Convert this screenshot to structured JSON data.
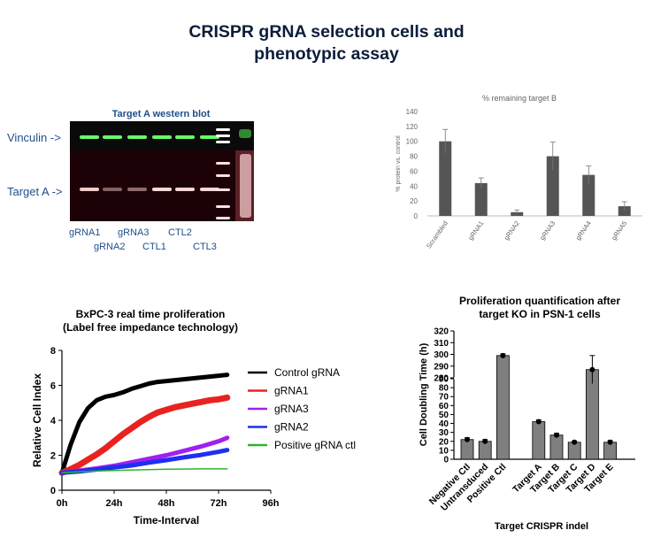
{
  "title": [
    "CRISPR gRNA selection cells and",
    "phenotypic assay"
  ],
  "western_blot": {
    "title": "Target A western blot",
    "row_labels": [
      "Vinculin ->",
      "Target A ->"
    ],
    "lane_labels_top": [
      "gRNA1",
      "gRNA3",
      "CTL2"
    ],
    "lane_labels_bottom": [
      "gRNA2",
      "CTL1",
      "CTL3"
    ],
    "colors": {
      "title": "#1f4e8c",
      "labels": "#1f4e8c",
      "vinculin_band": "#66ff66",
      "target_band": "#ffd6d6"
    }
  },
  "chart_data": [
    {
      "type": "bar",
      "title": "% remaining target B",
      "ylabel": "% protein  vs. control",
      "xlabel": "",
      "categories": [
        "Scrambled",
        "gRNA1",
        "gRNA2",
        "gRNA3",
        "gRNA4",
        "gRNA5"
      ],
      "values": [
        100,
        44,
        5,
        80,
        55,
        13
      ],
      "errors": [
        16,
        7,
        3,
        19,
        12,
        6
      ],
      "ylim": [
        0,
        140
      ],
      "yticks": [
        0,
        20,
        40,
        60,
        80,
        100,
        120,
        140
      ],
      "grid": false,
      "bar_color": "#555555"
    },
    {
      "type": "line",
      "title": "BxPC-3 real time proliferation",
      "subtitle": "(Label free impedance technology)",
      "xlabel": "Time-Interval",
      "ylabel": "Relative Cell Index",
      "xlim": [
        0,
        96
      ],
      "ylim": [
        0,
        8
      ],
      "xticks": [
        "0h",
        "24h",
        "48h",
        "72h",
        "96h"
      ],
      "xtick_values": [
        0,
        24,
        48,
        72,
        96
      ],
      "yticks": [
        0,
        2,
        4,
        6,
        8
      ],
      "legend_position": "right",
      "series": [
        {
          "name": "Control gRNA",
          "color": "#000000",
          "x": [
            0,
            4,
            8,
            12,
            16,
            20,
            24,
            28,
            32,
            36,
            40,
            44,
            48,
            52,
            56,
            60,
            64,
            68,
            72,
            76
          ],
          "y": [
            1.0,
            2.6,
            3.9,
            4.7,
            5.15,
            5.35,
            5.45,
            5.6,
            5.8,
            5.95,
            6.1,
            6.2,
            6.25,
            6.3,
            6.35,
            6.4,
            6.45,
            6.5,
            6.55,
            6.6
          ]
        },
        {
          "name": "gRNA1",
          "color": "#e8231f",
          "x": [
            0,
            4,
            8,
            12,
            16,
            20,
            24,
            28,
            32,
            36,
            40,
            44,
            48,
            52,
            56,
            60,
            64,
            68,
            72,
            76
          ],
          "y": [
            1.0,
            1.2,
            1.45,
            1.75,
            2.05,
            2.4,
            2.8,
            3.2,
            3.55,
            3.9,
            4.2,
            4.45,
            4.6,
            4.75,
            4.85,
            4.95,
            5.05,
            5.15,
            5.2,
            5.3
          ]
        },
        {
          "name": "gRNA3",
          "color": "#a020f0",
          "x": [
            0,
            8,
            16,
            24,
            32,
            40,
            48,
            56,
            64,
            72,
            76
          ],
          "y": [
            1.0,
            1.12,
            1.25,
            1.4,
            1.6,
            1.8,
            2.0,
            2.25,
            2.5,
            2.8,
            3.0
          ]
        },
        {
          "name": "gRNA2",
          "color": "#1e2ff0",
          "x": [
            0,
            8,
            16,
            24,
            32,
            40,
            48,
            56,
            64,
            72,
            76
          ],
          "y": [
            1.0,
            1.08,
            1.18,
            1.3,
            1.42,
            1.58,
            1.72,
            1.88,
            2.02,
            2.2,
            2.3
          ]
        },
        {
          "name": "Positive gRNA ctl",
          "color": "#2db52d",
          "x": [
            0,
            8,
            16,
            24,
            32,
            40,
            48,
            56,
            64,
            72,
            76
          ],
          "y": [
            1.0,
            1.05,
            1.1,
            1.13,
            1.16,
            1.18,
            1.2,
            1.21,
            1.22,
            1.22,
            1.22
          ]
        }
      ]
    },
    {
      "type": "bar",
      "title": "Proliferation quantification after target KO in PSN-1 cells",
      "title_lines": [
        "Proliferation quantification after",
        "target KO in PSN-1 cells"
      ],
      "xlabel": "Target CRISPR indel",
      "ylabel": "Cell Doubling Time (h)",
      "categories": [
        "Negative Ctl",
        "Untransduced",
        "Positive Ctl",
        "",
        "Target A",
        "Target B",
        "Target C",
        "Target D",
        "Target E"
      ],
      "values": [
        22,
        20,
        299,
        null,
        42,
        27,
        19,
        287,
        19
      ],
      "errors": [
        2,
        2,
        1.5,
        null,
        2,
        2,
        1.5,
        12,
        2
      ],
      "yticks": [
        0,
        10,
        20,
        30,
        40,
        50,
        60,
        70,
        80,
        90,
        280,
        290,
        300,
        310,
        320
      ],
      "axis_break": {
        "lower": [
          0,
          90
        ],
        "upper": [
          280,
          320
        ]
      },
      "bar_color": "#7f7f7f"
    }
  ]
}
